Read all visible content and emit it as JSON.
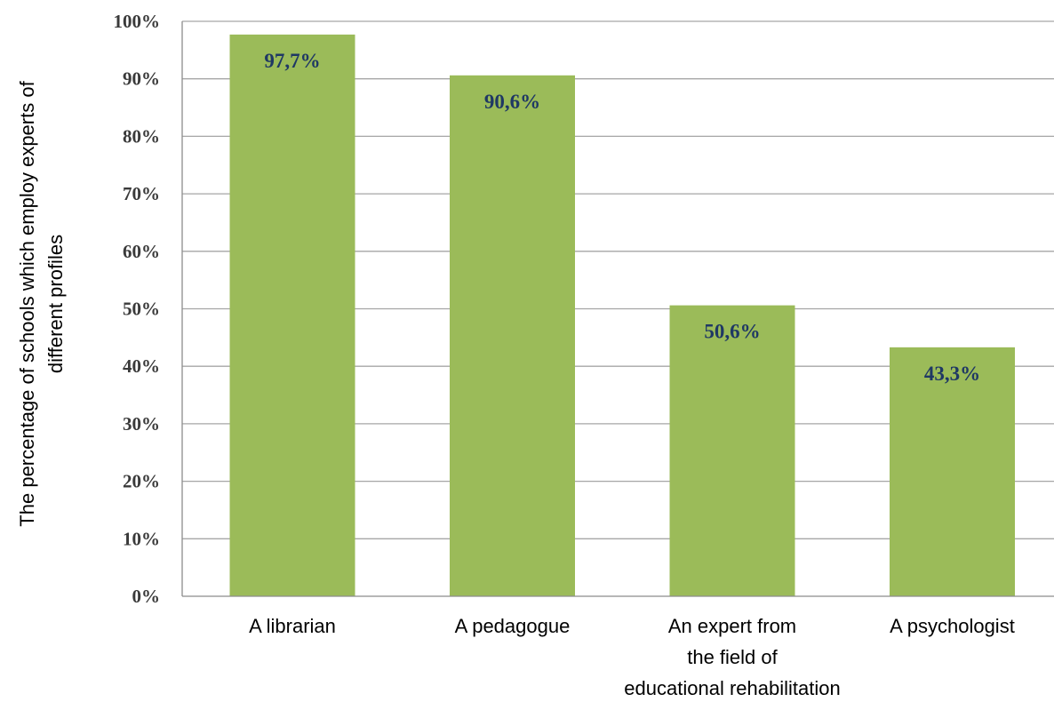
{
  "chart_data": {
    "type": "bar",
    "categories": [
      [
        "A librarian"
      ],
      [
        "A pedagogue"
      ],
      [
        "An expert from",
        "the field of",
        "educational rehabilitation"
      ],
      [
        "A psychologist"
      ]
    ],
    "values": [
      97.7,
      90.6,
      50.6,
      43.3
    ],
    "data_labels": [
      "97,7%",
      "90,6%",
      "50,6%",
      "43,3%"
    ],
    "ylabel": [
      "The percentage of schools which employ experts of",
      "different profiles"
    ],
    "xlabel": "",
    "title": "",
    "ylim": [
      0,
      100
    ],
    "y_ticks": [
      0,
      10,
      20,
      30,
      40,
      50,
      60,
      70,
      80,
      90,
      100
    ],
    "y_tick_labels": [
      "0%",
      "10%",
      "20%",
      "30%",
      "40%",
      "50%",
      "60%",
      "70%",
      "80%",
      "90%",
      "100%"
    ],
    "grid": true,
    "legend": "none",
    "colors": {
      "bar": "#9bbb59",
      "data_label": "#1f3864",
      "grid": "#a6a6a6"
    }
  }
}
